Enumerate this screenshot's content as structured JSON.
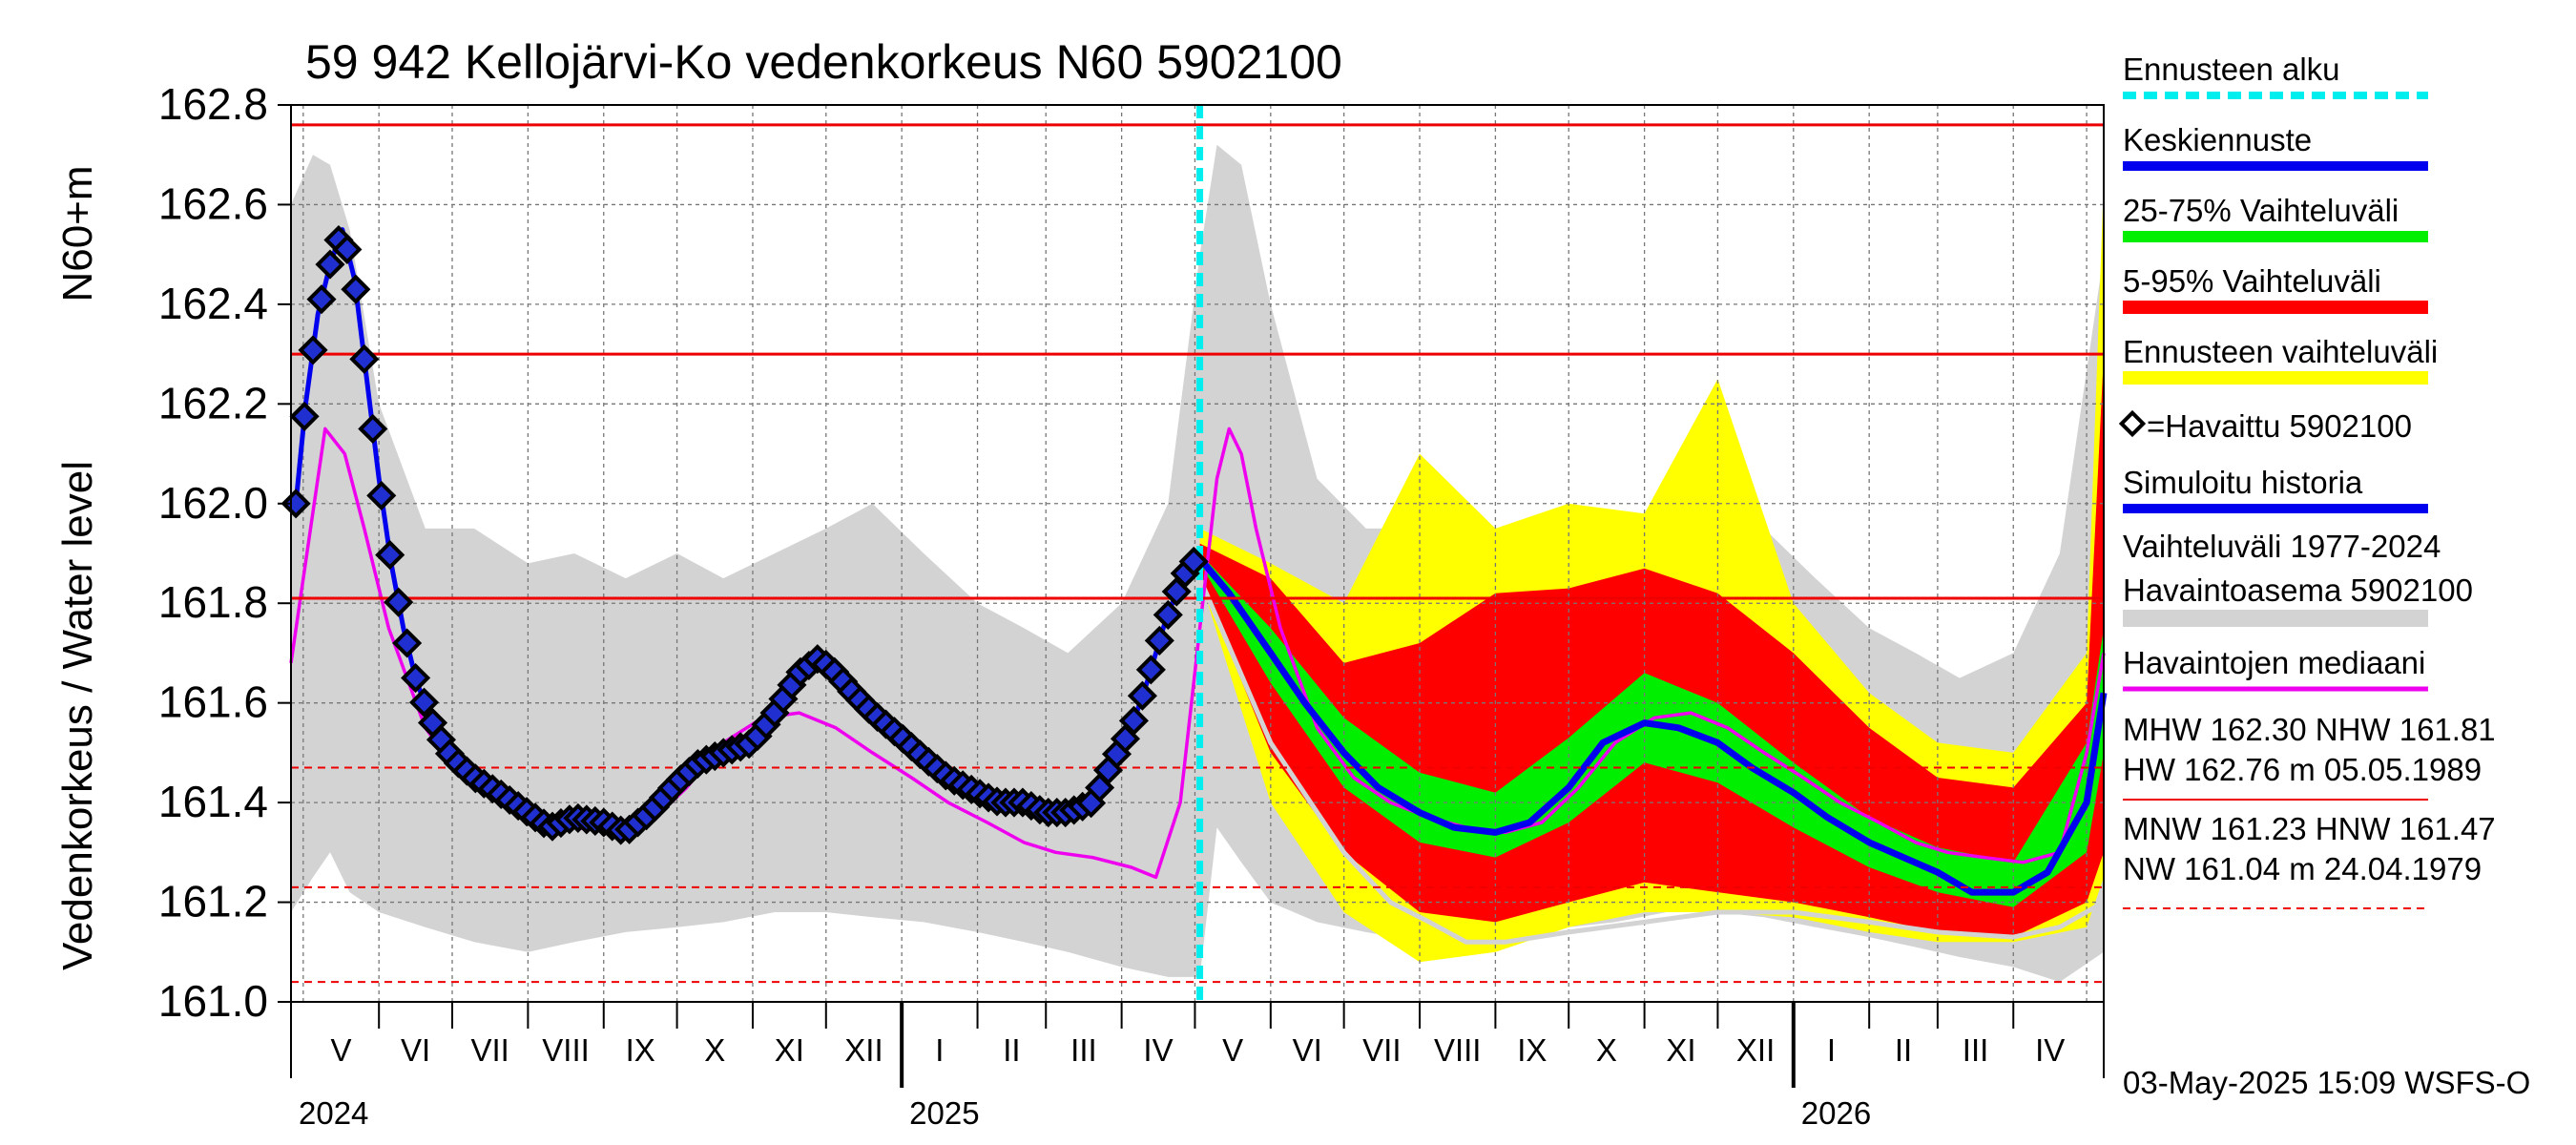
{
  "chart_data": {
    "type": "line",
    "title": "59 942 Kellojärvi-Ko vedenkorkeus N60 5902100",
    "ylabel_unit": "N60+m",
    "ylabel": "Vedenkorkeus / Water level",
    "ylim": [
      161.0,
      162.8
    ],
    "yticks": [
      "161.0",
      "161.2",
      "161.4",
      "161.6",
      "161.8",
      "162.0",
      "162.2",
      "162.4",
      "162.6",
      "162.8"
    ],
    "x_range": [
      "2024-04-26",
      "2026-05-08"
    ],
    "months": [
      "V",
      "VI",
      "VII",
      "VIII",
      "IX",
      "X",
      "XI",
      "XII",
      "I",
      "II",
      "III",
      "IV",
      "V",
      "VI",
      "VII",
      "VIII",
      "IX",
      "X",
      "XI",
      "XII",
      "I",
      "II",
      "III",
      "IV"
    ],
    "years": [
      "2024",
      "2025",
      "2026"
    ],
    "forecast_start": "2025-05-03",
    "grid": true,
    "reference_lines": [
      {
        "label": "HW",
        "value": 162.76
      },
      {
        "label": "MHW",
        "value": 162.3
      },
      {
        "label": "NHW",
        "value": 161.81
      },
      {
        "label": "HNW",
        "value": 161.47
      },
      {
        "label": "MNW",
        "value": 161.23
      },
      {
        "label": "NW",
        "value": 161.04
      }
    ],
    "series": {
      "observed": {
        "x": [
          "2024-04-28",
          "2024-05-02",
          "2024-05-07",
          "2024-05-12",
          "2024-05-17",
          "2024-05-22",
          "2024-05-27",
          "2024-06-01",
          "2024-06-06",
          "2024-06-11",
          "2024-06-16",
          "2024-06-21",
          "2024-06-26",
          "2024-07-01",
          "2024-07-10",
          "2024-07-20",
          "2024-08-01",
          "2024-08-10",
          "2024-08-20",
          "2024-09-01",
          "2024-09-10",
          "2024-09-20",
          "2024-10-01",
          "2024-10-10",
          "2024-10-20",
          "2024-11-01",
          "2024-11-10",
          "2024-11-20",
          "2024-11-28",
          "2024-12-05",
          "2024-12-12",
          "2024-12-20",
          "2025-01-01",
          "2025-01-10",
          "2025-01-20",
          "2025-02-01",
          "2025-02-10",
          "2025-02-20",
          "2025-03-01",
          "2025-03-10",
          "2025-03-20",
          "2025-03-28",
          "2025-04-05",
          "2025-04-12",
          "2025-04-18",
          "2025-04-24",
          "2025-04-29",
          "2025-05-03"
        ],
        "y": [
          162.0,
          162.2,
          162.38,
          162.48,
          162.55,
          162.45,
          162.25,
          162.05,
          161.88,
          161.75,
          161.65,
          161.58,
          161.53,
          161.49,
          161.45,
          161.42,
          161.38,
          161.35,
          161.37,
          161.36,
          161.34,
          161.38,
          161.44,
          161.48,
          161.5,
          161.52,
          161.58,
          161.66,
          161.69,
          161.66,
          161.62,
          161.58,
          161.53,
          161.49,
          161.45,
          161.42,
          161.4,
          161.4,
          161.38,
          161.38,
          161.4,
          161.48,
          161.55,
          161.65,
          161.75,
          161.83,
          161.88,
          161.89
        ]
      },
      "observed_median": {
        "x": [
          "2024-04-26",
          "2024-05-04",
          "2024-05-10",
          "2024-05-18",
          "2024-05-26",
          "2024-06-05",
          "2024-06-20",
          "2024-07-05",
          "2024-07-20",
          "2024-08-05",
          "2024-08-20",
          "2024-09-05",
          "2024-09-20",
          "2024-10-05",
          "2024-10-20",
          "2024-11-05",
          "2024-11-20",
          "2024-12-05",
          "2024-12-20",
          "2025-01-05",
          "2025-01-20",
          "2025-02-05",
          "2025-02-20",
          "2025-03-05",
          "2025-03-20",
          "2025-04-05",
          "2025-04-15",
          "2025-04-25",
          "2025-05-03",
          "2025-05-10",
          "2025-05-15",
          "2025-05-20",
          "2025-05-26",
          "2025-06-05",
          "2025-06-20",
          "2025-07-05",
          "2025-07-20",
          "2025-08-05",
          "2025-08-20",
          "2025-09-05",
          "2025-09-20",
          "2025-10-05",
          "2025-10-20",
          "2025-11-05",
          "2025-11-20",
          "2025-12-05",
          "2025-12-20",
          "2026-01-05",
          "2026-01-20",
          "2026-02-05",
          "2026-02-20",
          "2026-03-05",
          "2026-03-20",
          "2026-04-05",
          "2026-04-20",
          "2026-05-01",
          "2026-05-08"
        ],
        "y": [
          161.68,
          161.95,
          162.15,
          162.1,
          161.95,
          161.75,
          161.55,
          161.45,
          161.4,
          161.37,
          161.35,
          161.34,
          161.36,
          161.43,
          161.52,
          161.57,
          161.58,
          161.55,
          161.5,
          161.45,
          161.4,
          161.36,
          161.32,
          161.3,
          161.29,
          161.27,
          161.25,
          161.4,
          161.75,
          162.05,
          162.15,
          162.1,
          161.95,
          161.75,
          161.55,
          161.45,
          161.4,
          161.37,
          161.35,
          161.34,
          161.36,
          161.43,
          161.52,
          161.57,
          161.58,
          161.55,
          161.5,
          161.45,
          161.4,
          161.36,
          161.32,
          161.3,
          161.29,
          161.28,
          161.3,
          161.5,
          161.7
        ]
      },
      "forecast_mean": {
        "x": [
          "2025-05-03",
          "2025-05-15",
          "2025-06-01",
          "2025-06-15",
          "2025-07-01",
          "2025-07-15",
          "2025-08-01",
          "2025-08-15",
          "2025-09-01",
          "2025-09-15",
          "2025-10-01",
          "2025-10-15",
          "2025-11-01",
          "2025-11-15",
          "2025-12-01",
          "2025-12-15",
          "2026-01-01",
          "2026-01-15",
          "2026-02-01",
          "2026-02-15",
          "2026-03-01",
          "2026-03-15",
          "2026-04-01",
          "2026-04-15",
          "2026-05-01",
          "2026-05-08"
        ],
        "y": [
          161.89,
          161.82,
          161.7,
          161.6,
          161.5,
          161.43,
          161.38,
          161.35,
          161.34,
          161.36,
          161.43,
          161.52,
          161.56,
          161.55,
          161.52,
          161.47,
          161.42,
          161.37,
          161.32,
          161.29,
          161.26,
          161.22,
          161.22,
          161.26,
          161.4,
          161.62
        ]
      },
      "band_25_75": {
        "x": [
          "2025-05-03",
          "2025-06-01",
          "2025-07-01",
          "2025-08-01",
          "2025-09-01",
          "2025-10-01",
          "2025-11-01",
          "2025-12-01",
          "2026-01-01",
          "2026-02-01",
          "2026-03-01",
          "2026-04-01",
          "2026-05-01",
          "2026-05-08"
        ],
        "low": [
          161.88,
          161.64,
          161.43,
          161.32,
          161.29,
          161.36,
          161.48,
          161.44,
          161.35,
          161.27,
          161.22,
          161.19,
          161.3,
          161.5
        ],
        "high": [
          161.9,
          161.75,
          161.57,
          161.46,
          161.42,
          161.53,
          161.66,
          161.6,
          161.48,
          161.37,
          161.31,
          161.28,
          161.52,
          161.75
        ]
      },
      "band_5_95": {
        "x": [
          "2025-05-03",
          "2025-06-01",
          "2025-07-01",
          "2025-08-01",
          "2025-09-01",
          "2025-10-01",
          "2025-11-01",
          "2025-12-01",
          "2026-01-01",
          "2026-02-01",
          "2026-03-01",
          "2026-04-01",
          "2026-05-01",
          "2026-05-08"
        ],
        "low": [
          161.85,
          161.5,
          161.3,
          161.18,
          161.16,
          161.2,
          161.24,
          161.22,
          161.2,
          161.17,
          161.14,
          161.13,
          161.2,
          161.3
        ],
        "high": [
          161.92,
          161.85,
          161.68,
          161.72,
          161.82,
          161.83,
          161.87,
          161.82,
          161.7,
          161.55,
          161.45,
          161.43,
          161.6,
          162.3
        ]
      },
      "forecast_range": {
        "x": [
          "2025-05-03",
          "2025-06-01",
          "2025-07-01",
          "2025-08-01",
          "2025-09-01",
          "2025-10-01",
          "2025-11-01",
          "2025-12-01",
          "2026-01-01",
          "2026-02-01",
          "2026-03-01",
          "2026-04-01",
          "2026-05-01",
          "2026-05-08"
        ],
        "low": [
          161.85,
          161.4,
          161.18,
          161.08,
          161.1,
          161.15,
          161.18,
          161.18,
          161.17,
          161.14,
          161.12,
          161.12,
          161.15,
          161.25
        ],
        "high": [
          161.95,
          161.88,
          161.8,
          162.1,
          161.95,
          162.0,
          161.98,
          162.25,
          161.8,
          161.62,
          161.52,
          161.5,
          161.7,
          162.65
        ]
      },
      "historical_range": {
        "x": [
          "2024-04-26",
          "2024-05-05",
          "2024-05-12",
          "2024-05-20",
          "2024-06-01",
          "2024-06-20",
          "2024-07-10",
          "2024-08-01",
          "2024-08-20",
          "2024-09-10",
          "2024-10-01",
          "2024-10-20",
          "2024-11-10",
          "2024-12-01",
          "2024-12-20",
          "2025-01-10",
          "2025-02-01",
          "2025-02-20",
          "2025-03-10",
          "2025-04-01",
          "2025-04-20",
          "2025-05-03",
          "2025-05-10",
          "2025-05-20",
          "2025-06-01",
          "2025-06-20",
          "2025-07-10",
          "2025-08-01",
          "2025-08-20",
          "2025-09-10",
          "2025-10-01",
          "2025-10-20",
          "2025-11-10",
          "2025-12-01",
          "2025-12-20",
          "2026-01-10",
          "2026-02-01",
          "2026-02-20",
          "2026-03-10",
          "2026-04-01",
          "2026-04-20",
          "2026-05-08"
        ],
        "low": [
          161.18,
          161.25,
          161.3,
          161.22,
          161.18,
          161.15,
          161.12,
          161.1,
          161.12,
          161.14,
          161.15,
          161.16,
          161.18,
          161.18,
          161.17,
          161.16,
          161.14,
          161.12,
          161.1,
          161.07,
          161.05,
          161.05,
          161.35,
          161.28,
          161.2,
          161.16,
          161.14,
          161.12,
          161.12,
          161.14,
          161.15,
          161.16,
          161.18,
          161.18,
          161.17,
          161.15,
          161.13,
          161.11,
          161.09,
          161.07,
          161.04,
          161.1
        ],
        "high": [
          162.6,
          162.7,
          162.68,
          162.55,
          162.2,
          161.95,
          161.95,
          161.88,
          161.9,
          161.85,
          161.9,
          161.85,
          161.9,
          161.95,
          162.0,
          161.9,
          161.8,
          161.75,
          161.7,
          161.8,
          162.0,
          162.5,
          162.72,
          162.68,
          162.4,
          162.05,
          161.95,
          161.95,
          161.9,
          161.85,
          161.9,
          161.88,
          161.92,
          161.95,
          161.95,
          161.85,
          161.75,
          161.7,
          161.65,
          161.7,
          161.9,
          162.5
        ]
      },
      "historical_min_trace": {
        "x": [
          "2025-05-03",
          "2025-06-01",
          "2025-07-01",
          "2025-07-20",
          "2025-08-05",
          "2025-08-20",
          "2025-09-05",
          "2025-10-01",
          "2025-11-01",
          "2025-12-01",
          "2026-01-01",
          "2026-02-01",
          "2026-03-01",
          "2026-04-01",
          "2026-04-20",
          "2026-05-08"
        ],
        "y": [
          161.85,
          161.52,
          161.3,
          161.2,
          161.16,
          161.12,
          161.12,
          161.14,
          161.16,
          161.18,
          161.18,
          161.16,
          161.14,
          161.13,
          161.15,
          161.2
        ]
      }
    },
    "legend": [
      "Ennusteen alku",
      "Keskiennuste",
      "25-75% Vaihteluväli",
      "5-95% Vaihteluväli",
      "Ennusteen vaihteluväli",
      "=Havaittu 5902100",
      "Simuloitu historia",
      "Vaihteluväli 1977-2024",
      " Havaintoasema 5902100",
      "Havaintojen mediaani"
    ],
    "stats_lines": [
      "MHW 162.30 NHW 161.81",
      "HW 162.76 m 05.05.1989",
      "MNW 161.23 HNW 161.47",
      "NW 161.04 m 24.04.1979"
    ],
    "footer": "03-May-2025 15:09 WSFS-O",
    "colors": {
      "historical_range": "#d3d3d3",
      "forecast_range": "#ffff00",
      "band_5_95": "#ff0000",
      "band_25_75": "#00ee00",
      "forecast_mean": "#0000ee",
      "observed_median": "#ee00ee",
      "simulated": "#0000ee",
      "forecast_start": "#00eeee",
      "reference": "#ee0000"
    }
  }
}
